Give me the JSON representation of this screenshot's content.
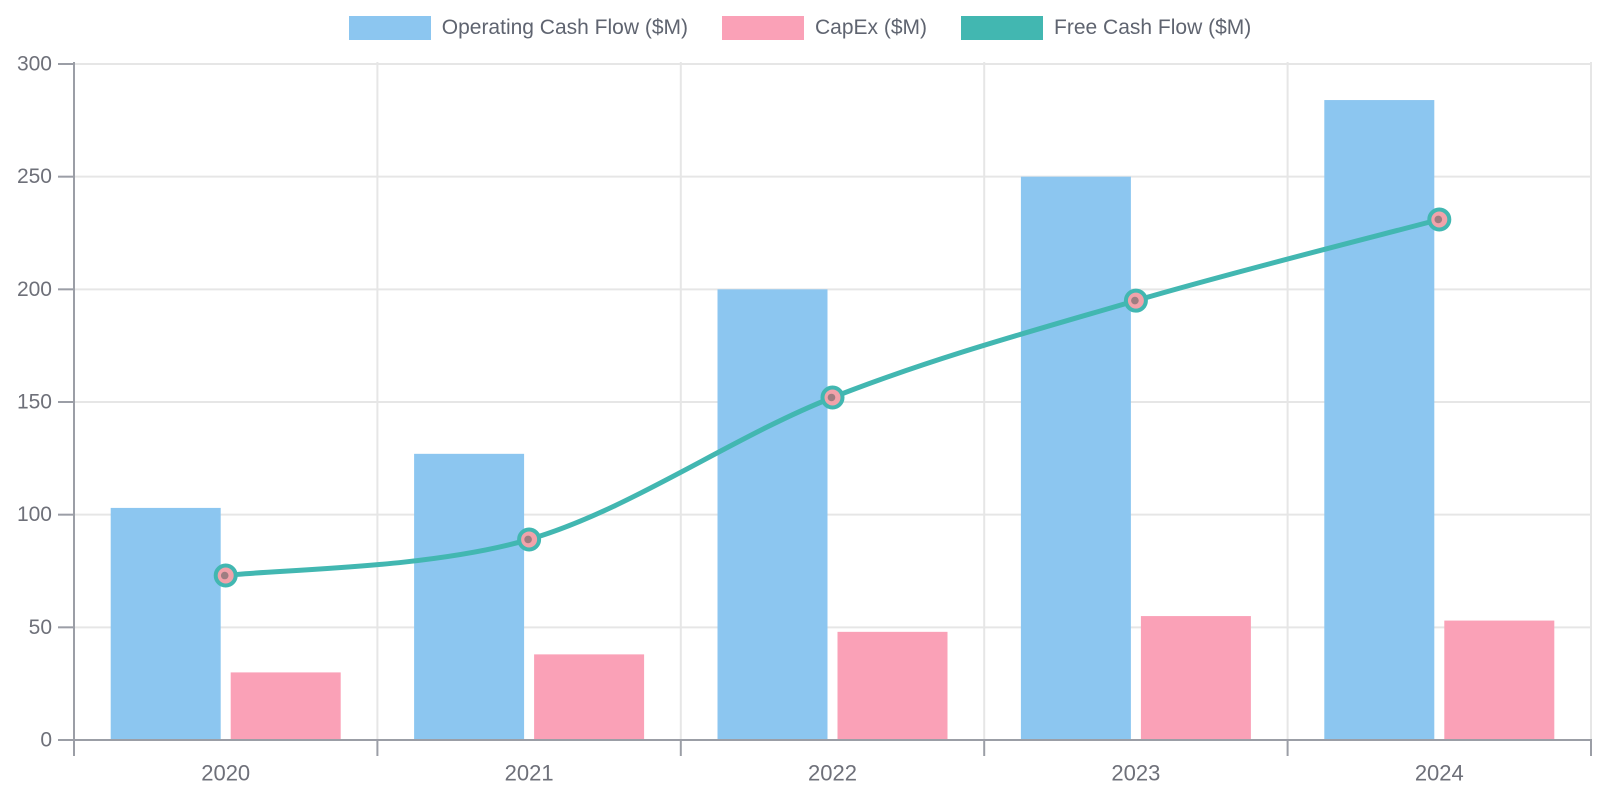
{
  "chart_data": {
    "type": "bar-line-combo",
    "title": "",
    "xlabel": "",
    "ylabel": "",
    "categories": [
      "2020",
      "2021",
      "2022",
      "2023",
      "2024"
    ],
    "series": [
      {
        "name": "Operating Cash Flow ($M)",
        "type": "bar",
        "color": "#8CC6F0",
        "values": [
          103,
          127,
          200,
          250,
          284
        ]
      },
      {
        "name": "CapEx ($M)",
        "type": "bar",
        "color": "#FAA1B7",
        "values": [
          30,
          38,
          48,
          55,
          53
        ]
      },
      {
        "name": "Free Cash Flow ($M)",
        "type": "line",
        "color": "#42B7B1",
        "marker_fill": "#F2A2AA",
        "marker_core": "#95797C",
        "values": [
          73,
          89,
          152,
          195,
          231
        ]
      }
    ],
    "ylim": [
      0,
      300
    ],
    "yticks": [
      0,
      50,
      100,
      150,
      200,
      250,
      300
    ],
    "grid": true,
    "legend_position": "top",
    "colors": {
      "axis": "#9B9EA6",
      "grid": "#E6E6E6",
      "tick_label": "#6E7079"
    }
  }
}
